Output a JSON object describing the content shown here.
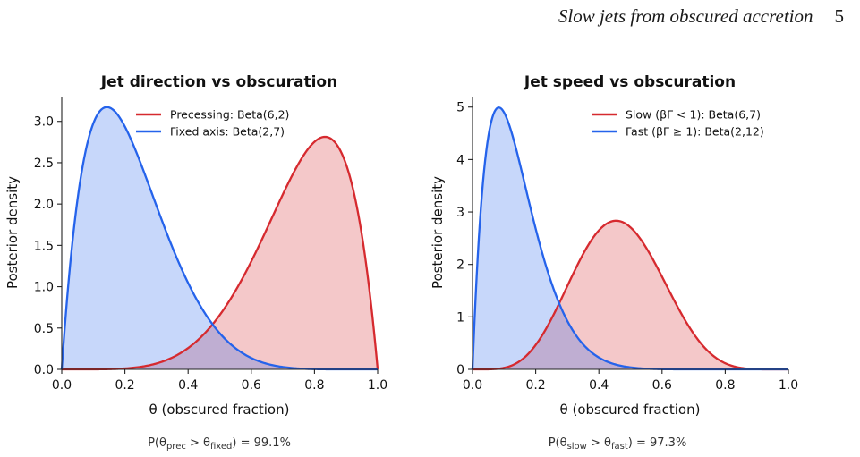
{
  "running_head": {
    "title": "Slow jets from obscured accretion",
    "page": "5"
  },
  "colors": {
    "red": "#d62a2f",
    "blue": "#2563eb",
    "red_fill": "#f4c5c7",
    "blue_fill": "#c6d5f7"
  },
  "chart_data": [
    {
      "type": "area",
      "title": "Jet direction vs obscuration",
      "xlabel": "θ (obscured fraction)",
      "ylabel": "Posterior density",
      "xlim": [
        0,
        1
      ],
      "ylim": [
        0,
        3.3
      ],
      "xticks": [
        "0.0",
        "0.2",
        "0.4",
        "0.6",
        "0.8",
        "1.0"
      ],
      "yticks": [
        "0.0",
        "0.5",
        "1.0",
        "1.5",
        "2.0",
        "2.5",
        "3.0"
      ],
      "legend_position": "top-right",
      "series": [
        {
          "name": "Precessing: Beta(6,2)",
          "dist": "beta",
          "a": 6,
          "b": 2,
          "color": "#d62a2f",
          "peak": {
            "x": 0.833,
            "y": 2.81
          }
        },
        {
          "name": "Fixed axis: Beta(2,7)",
          "dist": "beta",
          "a": 2,
          "b": 7,
          "color": "#2563eb",
          "peak": {
            "x": 0.143,
            "y": 3.17
          }
        }
      ],
      "annotation_prefix": "P(θ",
      "annotation_sub1": "prec",
      "annotation_mid": " > θ",
      "annotation_sub2": "fixed",
      "annotation_value": ") = 99.1%"
    },
    {
      "type": "area",
      "title": "Jet speed vs obscuration",
      "xlabel": "θ (obscured fraction)",
      "ylabel": "Posterior density",
      "xlim": [
        0,
        1
      ],
      "ylim": [
        0,
        5.2
      ],
      "xticks": [
        "0.0",
        "0.2",
        "0.4",
        "0.6",
        "0.8",
        "1.0"
      ],
      "yticks": [
        "0",
        "1",
        "2",
        "3",
        "4",
        "5"
      ],
      "legend_position": "top-right",
      "series": [
        {
          "name": "Slow (βΓ < 1): Beta(6,7)",
          "dist": "beta",
          "a": 6,
          "b": 7,
          "color": "#d62a2f",
          "peak": {
            "x": 0.455,
            "y": 2.83
          }
        },
        {
          "name": "Fast (βΓ ≥ 1): Beta(2,12)",
          "dist": "beta",
          "a": 2,
          "b": 12,
          "color": "#2563eb",
          "peak": {
            "x": 0.083,
            "y": 4.98
          }
        }
      ],
      "annotation_prefix": "P(θ",
      "annotation_sub1": "slow",
      "annotation_mid": " > θ",
      "annotation_sub2": "fast",
      "annotation_value": ") = 97.3%"
    }
  ]
}
